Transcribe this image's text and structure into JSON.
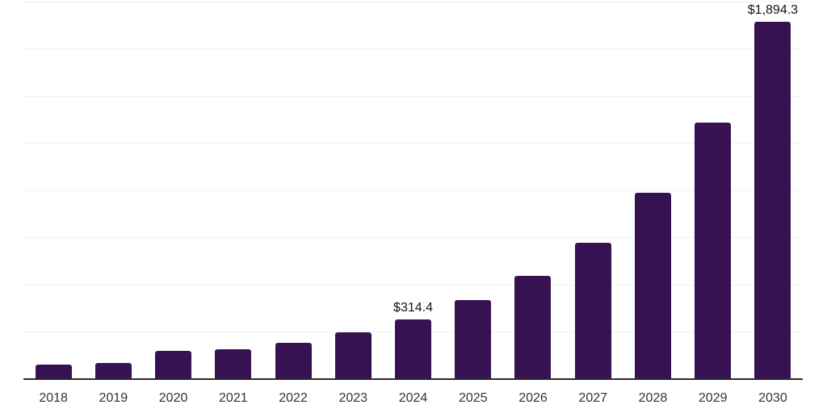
{
  "chart_data": {
    "type": "bar",
    "categories": [
      "2018",
      "2019",
      "2020",
      "2021",
      "2022",
      "2023",
      "2024",
      "2025",
      "2026",
      "2027",
      "2028",
      "2029",
      "2030"
    ],
    "values": [
      77,
      86,
      150,
      158,
      192,
      248,
      314.4,
      419,
      548,
      723,
      987,
      1359,
      1894.3
    ],
    "data_labels": {
      "2024": "$314.4",
      "2030": "$1,894.3"
    },
    "ylim": [
      0,
      2000
    ],
    "gridline_interval": 250,
    "grid": true,
    "legend": false,
    "xlabel": "",
    "ylabel": "",
    "colors": {
      "bar": "#371253",
      "axis_line": "#2b2b2b",
      "gridline": "#f1f1f3",
      "tick_label": "#333333",
      "value_label": "#141414",
      "background": "#ffffff"
    }
  }
}
